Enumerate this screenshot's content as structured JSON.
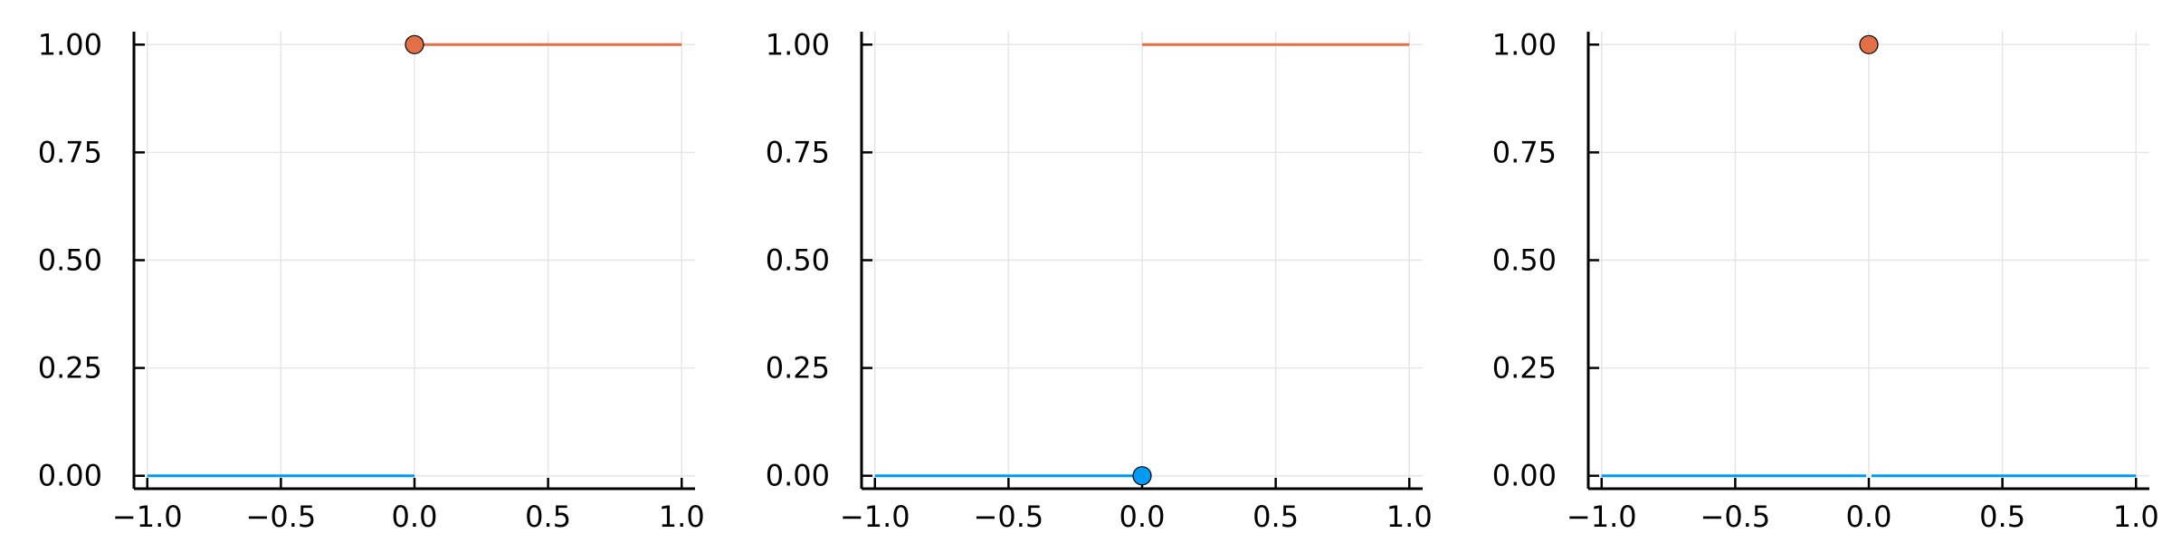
{
  "chart_data": [
    {
      "type": "line",
      "xlim": [
        -1.05,
        1.05
      ],
      "ylim": [
        -0.03,
        1.03
      ],
      "xticks": [
        -1.0,
        -0.5,
        0.0,
        0.5,
        1.0
      ],
      "xtick_labels": [
        "−1.0",
        "−0.5",
        "0.0",
        "0.5",
        "1.0"
      ],
      "yticks": [
        0.0,
        0.25,
        0.5,
        0.75,
        1.0
      ],
      "ytick_labels": [
        "0.00",
        "0.25",
        "0.50",
        "0.75",
        "1.00"
      ],
      "grid": true,
      "legend": false,
      "series": [
        {
          "kind": "line",
          "color": "#009af9",
          "x": [
            -1.0,
            0.0
          ],
          "y": [
            0.0,
            0.0
          ]
        },
        {
          "kind": "line",
          "color": "#e26f46",
          "x": [
            0.0,
            1.0
          ],
          "y": [
            1.0,
            1.0
          ]
        },
        {
          "kind": "point",
          "color": "#e26f46",
          "x": [
            0.0
          ],
          "y": [
            1.0
          ]
        }
      ]
    },
    {
      "type": "line",
      "xlim": [
        -1.05,
        1.05
      ],
      "ylim": [
        -0.03,
        1.03
      ],
      "xticks": [
        -1.0,
        -0.5,
        0.0,
        0.5,
        1.0
      ],
      "xtick_labels": [
        "−1.0",
        "−0.5",
        "0.0",
        "0.5",
        "1.0"
      ],
      "yticks": [
        0.0,
        0.25,
        0.5,
        0.75,
        1.0
      ],
      "ytick_labels": [
        "0.00",
        "0.25",
        "0.50",
        "0.75",
        "1.00"
      ],
      "grid": true,
      "legend": false,
      "series": [
        {
          "kind": "line",
          "color": "#009af9",
          "x": [
            -1.0,
            0.0
          ],
          "y": [
            0.0,
            0.0
          ]
        },
        {
          "kind": "line",
          "color": "#e26f46",
          "x": [
            0.0,
            1.0
          ],
          "y": [
            1.0,
            1.0
          ]
        },
        {
          "kind": "point",
          "color": "#009af9",
          "x": [
            0.0
          ],
          "y": [
            0.0
          ]
        }
      ]
    },
    {
      "type": "line",
      "xlim": [
        -1.05,
        1.05
      ],
      "ylim": [
        -0.03,
        1.03
      ],
      "xticks": [
        -1.0,
        -0.5,
        0.0,
        0.5,
        1.0
      ],
      "xtick_labels": [
        "−1.0",
        "−0.5",
        "0.0",
        "0.5",
        "1.0"
      ],
      "yticks": [
        0.0,
        0.25,
        0.5,
        0.75,
        1.0
      ],
      "ytick_labels": [
        "0.00",
        "0.25",
        "0.50",
        "0.75",
        "1.00"
      ],
      "grid": true,
      "legend": false,
      "series": [
        {
          "kind": "line",
          "color": "#009af9",
          "x": [
            -1.0,
            -0.01
          ],
          "y": [
            0.0,
            0.0
          ]
        },
        {
          "kind": "line",
          "color": "#009af9",
          "x": [
            0.01,
            1.0
          ],
          "y": [
            0.0,
            0.0
          ]
        },
        {
          "kind": "point",
          "color": "#e26f46",
          "x": [
            0.0
          ],
          "y": [
            1.0
          ]
        }
      ]
    }
  ]
}
